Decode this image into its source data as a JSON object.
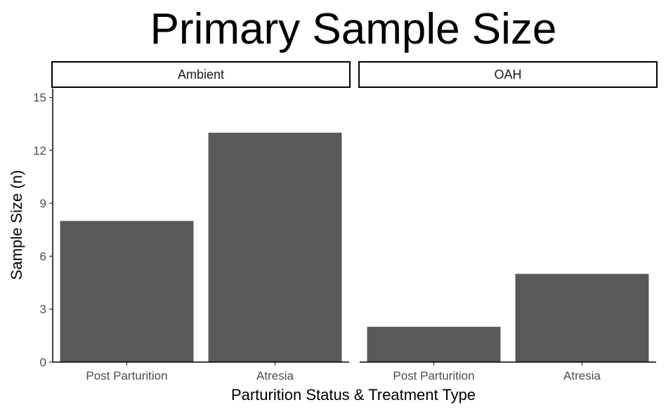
{
  "chart_data": {
    "type": "bar",
    "title": "Primary Sample Size",
    "xlabel": "Parturition Status & Treatment Type",
    "ylabel": "Sample Size (n)",
    "ylim": [
      0,
      15.5
    ],
    "yticks": [
      0,
      3,
      6,
      9,
      12,
      15
    ],
    "grid": false,
    "bar_color": "#595959",
    "categories": [
      "Post Parturition",
      "Atresia"
    ],
    "facets": [
      {
        "name": "Ambient",
        "values": [
          8,
          13
        ]
      },
      {
        "name": "OAH",
        "values": [
          2,
          5
        ]
      }
    ]
  }
}
